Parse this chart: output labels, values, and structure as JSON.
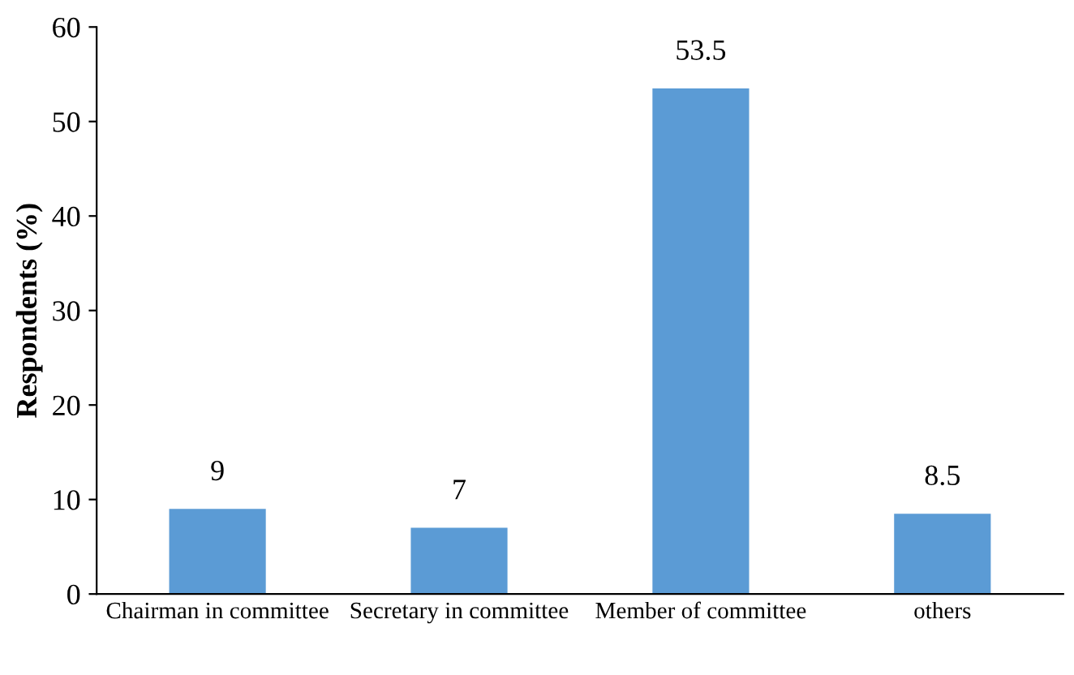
{
  "chart_data": {
    "type": "bar",
    "ylabel": "Respondents (%)",
    "categories": [
      "Chairman in committee",
      "Secretary in committee",
      "Member of committee",
      "others"
    ],
    "values": [
      9,
      7,
      53.5,
      8.5
    ],
    "color": "#5b9bd5",
    "ylim": [
      0,
      60
    ],
    "yticks": [
      0,
      10,
      20,
      30,
      40,
      50,
      60
    ],
    "grid": false,
    "data_labels": true
  }
}
